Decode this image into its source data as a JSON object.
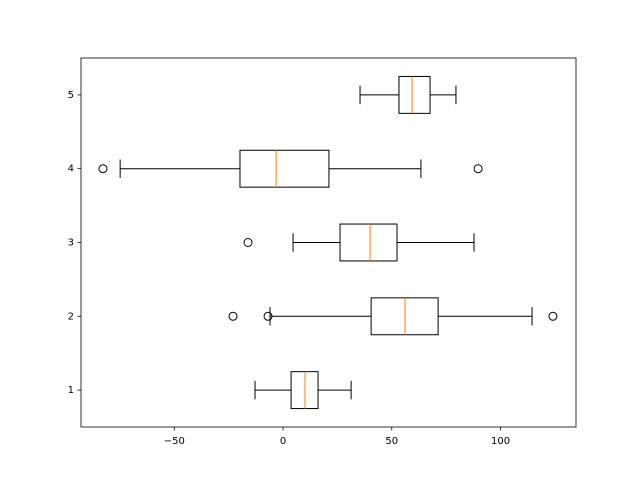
{
  "chart_data": {
    "type": "boxplot",
    "orientation": "horizontal",
    "categories": [
      "1",
      "2",
      "3",
      "4",
      "5"
    ],
    "boxes": [
      {
        "whislo": -12.9,
        "q1": 3.7,
        "med": 10.1,
        "q3": 16.1,
        "whishi": 31.3,
        "fliers": []
      },
      {
        "whislo": -6.0,
        "q1": 40.5,
        "med": 56.1,
        "q3": 71.3,
        "whishi": 114.5,
        "fliers": [
          -23.0,
          -6.9,
          124.1
        ]
      },
      {
        "whislo": 4.6,
        "q1": 26.2,
        "med": 40.0,
        "q3": 52.4,
        "whishi": 87.8,
        "fliers": [
          -16.1
        ]
      },
      {
        "whislo": -74.9,
        "q1": -19.8,
        "med": -3.2,
        "q3": 21.1,
        "whishi": 63.4,
        "fliers": [
          -82.8,
          89.7
        ]
      },
      {
        "whislo": 35.4,
        "q1": 53.3,
        "med": 59.3,
        "q3": 67.6,
        "whishi": 79.5,
        "fliers": []
      }
    ],
    "box_color": "#000000",
    "median_color": "#ff7f0e",
    "xlim": [
      -92.9,
      134.7
    ],
    "xticks": [
      {
        "value": -50,
        "label": "−50"
      },
      0,
      50,
      100
    ],
    "ylim": [
      0.5,
      5.5
    ]
  }
}
